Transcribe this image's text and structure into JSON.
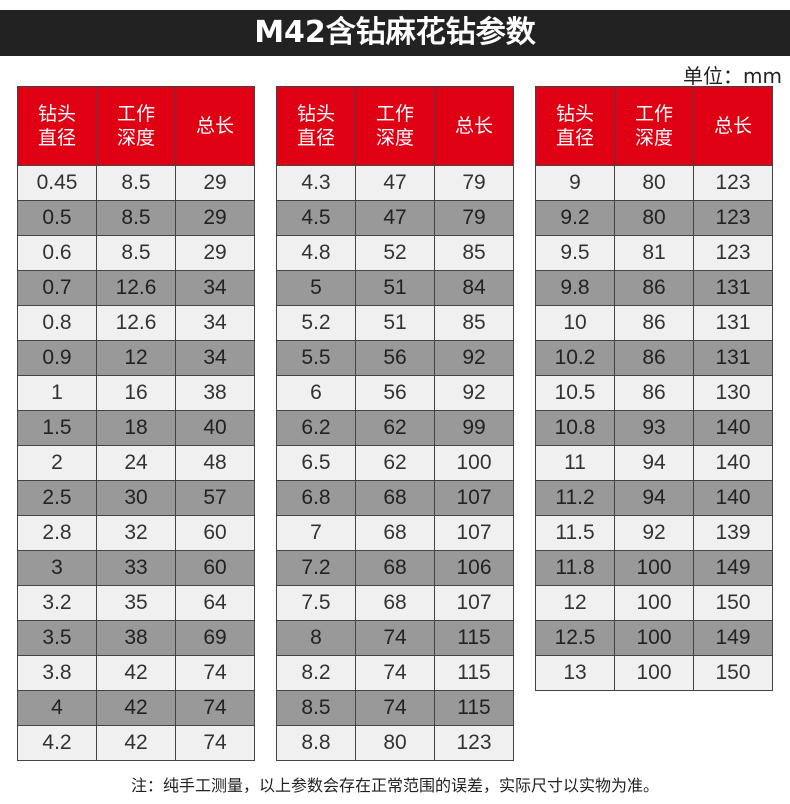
{
  "title": "M42含钻麻花钻参数",
  "unit": "单位：mm",
  "headers": {
    "diameter": "钻头\n直径",
    "depth": "工作\n深度",
    "length": "总长"
  },
  "tables": [
    [
      [
        "0.45",
        "8.5",
        "29"
      ],
      [
        "0.5",
        "8.5",
        "29"
      ],
      [
        "0.6",
        "8.5",
        "29"
      ],
      [
        "0.7",
        "12.6",
        "34"
      ],
      [
        "0.8",
        "12.6",
        "34"
      ],
      [
        "0.9",
        "12",
        "34"
      ],
      [
        "1",
        "16",
        "38"
      ],
      [
        "1.5",
        "18",
        "40"
      ],
      [
        "2",
        "24",
        "48"
      ],
      [
        "2.5",
        "30",
        "57"
      ],
      [
        "2.8",
        "32",
        "60"
      ],
      [
        "3",
        "33",
        "60"
      ],
      [
        "3.2",
        "35",
        "64"
      ],
      [
        "3.5",
        "38",
        "69"
      ],
      [
        "3.8",
        "42",
        "74"
      ],
      [
        "4",
        "42",
        "74"
      ],
      [
        "4.2",
        "42",
        "74"
      ]
    ],
    [
      [
        "4.3",
        "47",
        "79"
      ],
      [
        "4.5",
        "47",
        "79"
      ],
      [
        "4.8",
        "52",
        "85"
      ],
      [
        "5",
        "51",
        "84"
      ],
      [
        "5.2",
        "51",
        "85"
      ],
      [
        "5.5",
        "56",
        "92"
      ],
      [
        "6",
        "56",
        "92"
      ],
      [
        "6.2",
        "62",
        "99"
      ],
      [
        "6.5",
        "62",
        "100"
      ],
      [
        "6.8",
        "68",
        "107"
      ],
      [
        "7",
        "68",
        "107"
      ],
      [
        "7.2",
        "68",
        "106"
      ],
      [
        "7.5",
        "68",
        "107"
      ],
      [
        "8",
        "74",
        "115"
      ],
      [
        "8.2",
        "74",
        "115"
      ],
      [
        "8.5",
        "74",
        "115"
      ],
      [
        "8.8",
        "80",
        "123"
      ]
    ],
    [
      [
        "9",
        "80",
        "123"
      ],
      [
        "9.2",
        "80",
        "123"
      ],
      [
        "9.5",
        "81",
        "123"
      ],
      [
        "9.8",
        "86",
        "131"
      ],
      [
        "10",
        "86",
        "131"
      ],
      [
        "10.2",
        "86",
        "131"
      ],
      [
        "10.5",
        "86",
        "130"
      ],
      [
        "10.8",
        "93",
        "140"
      ],
      [
        "11",
        "94",
        "140"
      ],
      [
        "11.2",
        "94",
        "140"
      ],
      [
        "11.5",
        "92",
        "139"
      ],
      [
        "11.8",
        "100",
        "149"
      ],
      [
        "12",
        "100",
        "150"
      ],
      [
        "12.5",
        "100",
        "149"
      ],
      [
        "13",
        "100",
        "150"
      ]
    ]
  ],
  "note": "注：纯手工测量，以上参数会存在正常范围的误差，实际尺寸以实物为准。"
}
